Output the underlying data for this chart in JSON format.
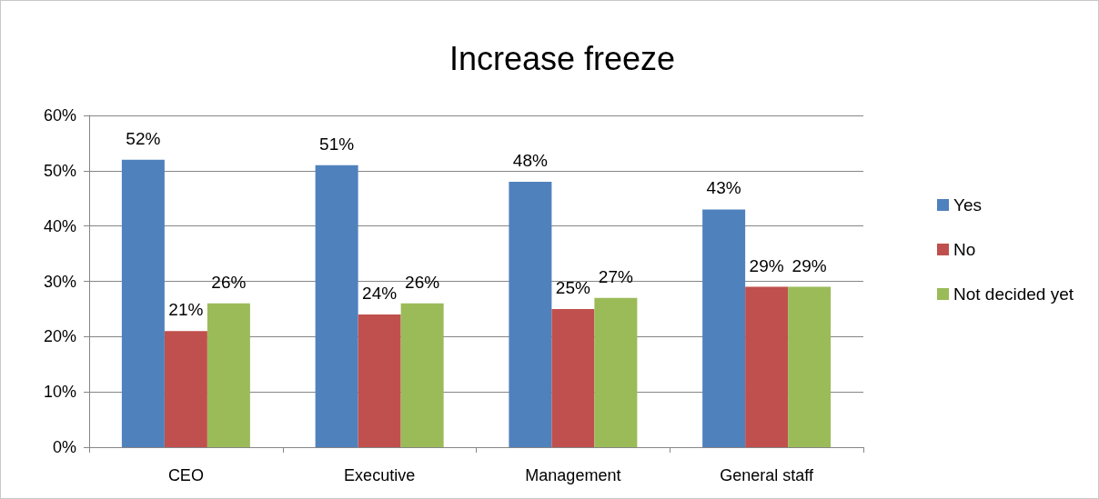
{
  "chart_data": {
    "type": "bar",
    "title": "Increase freeze",
    "categories": [
      "CEO",
      "Executive",
      "Management",
      "General staff"
    ],
    "series": [
      {
        "name": "Yes",
        "color": "#4f81bd",
        "values": [
          52,
          51,
          48,
          43
        ],
        "value_labels": [
          "52%",
          "51%",
          "48%",
          "43%"
        ]
      },
      {
        "name": "No",
        "color": "#c0504d",
        "values": [
          21,
          24,
          25,
          29
        ],
        "value_labels": [
          "21%",
          "24%",
          "25%",
          "29%"
        ]
      },
      {
        "name": "Not decided yet",
        "color": "#9bbb59",
        "values": [
          26,
          26,
          27,
          29
        ],
        "value_labels": [
          "26%",
          "26%",
          "27%",
          "29%"
        ]
      }
    ],
    "ylim": [
      0,
      60
    ],
    "yticks": [
      {
        "value": 0,
        "label": "0%"
      },
      {
        "value": 10,
        "label": "10%"
      },
      {
        "value": 20,
        "label": "20%"
      },
      {
        "value": 30,
        "label": "30%"
      },
      {
        "value": 40,
        "label": "40%"
      },
      {
        "value": 50,
        "label": "50%"
      },
      {
        "value": 60,
        "label": "60%"
      }
    ],
    "grid": "y",
    "legend": "right"
  }
}
